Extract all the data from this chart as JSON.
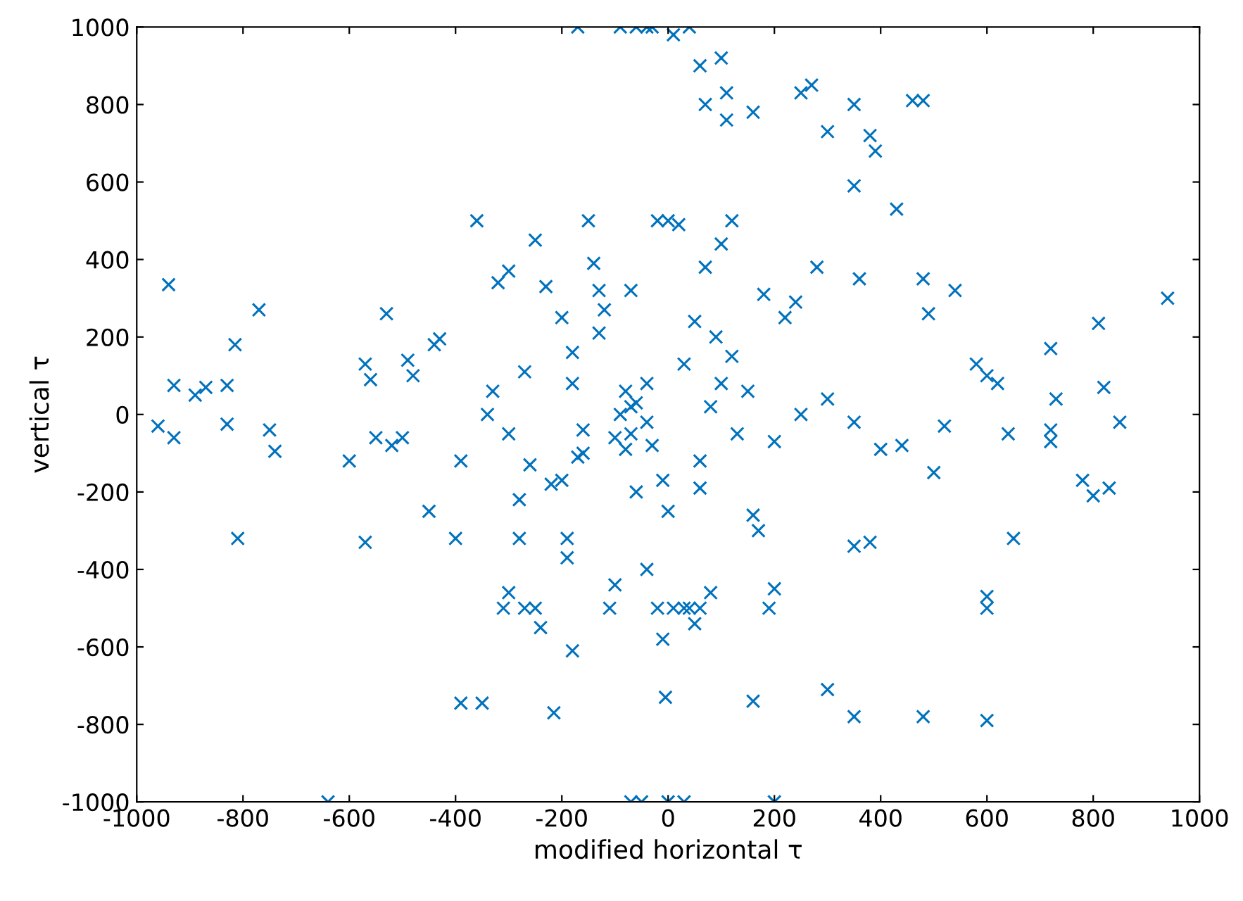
{
  "chart_data": {
    "type": "scatter",
    "xlabel": "modified horizontal τ",
    "ylabel": "vertical τ",
    "xlim": [
      -1000,
      1000
    ],
    "ylim": [
      -1000,
      1000
    ],
    "xticks": [
      -1000,
      -800,
      -600,
      -400,
      -200,
      0,
      200,
      400,
      600,
      800,
      1000
    ],
    "yticks": [
      -1000,
      -800,
      -600,
      -400,
      -200,
      0,
      200,
      400,
      600,
      800,
      1000
    ],
    "grid": false,
    "marker": "cross",
    "series": [
      {
        "color": "#0072bd",
        "x": [
          -940,
          -930,
          -930,
          -960,
          -890,
          -870,
          -830,
          -830,
          -815,
          -810,
          -770,
          -750,
          -740,
          -640,
          -600,
          -570,
          -570,
          -560,
          -550,
          -530,
          -520,
          -500,
          -490,
          -480,
          -450,
          -440,
          -430,
          -400,
          -390,
          -390,
          -360,
          -350,
          -340,
          -330,
          -320,
          -310,
          -300,
          -300,
          -280,
          -270,
          -270,
          -250,
          -250,
          -240,
          -230,
          -220,
          -215,
          -200,
          -190,
          -180,
          -180,
          -170,
          -160,
          -150,
          -140,
          -130,
          -120,
          -110,
          -100,
          -90,
          -80,
          -70,
          -60,
          -60,
          -50,
          -40,
          -30,
          -20,
          0,
          20,
          10,
          -20,
          30,
          60,
          -10,
          -5,
          0,
          10,
          40,
          60,
          70,
          100,
          110,
          110,
          160,
          250,
          270,
          300,
          350,
          380,
          390,
          460,
          480,
          350,
          430,
          480,
          490,
          540,
          580,
          600,
          620,
          640,
          650,
          600,
          600,
          600,
          480,
          350,
          300,
          200,
          160,
          200,
          190,
          -70,
          -40,
          -100,
          -80,
          80,
          100,
          120,
          150,
          130,
          200,
          250,
          300,
          350,
          400,
          440,
          500,
          520,
          720,
          720,
          730,
          720,
          780,
          800,
          810,
          820,
          830,
          850,
          940,
          360,
          350,
          380,
          280,
          240,
          180,
          220,
          170,
          160,
          90,
          30,
          50,
          60,
          60,
          -10,
          -200,
          -260,
          -280,
          -180,
          -300,
          -160,
          -40,
          -30,
          70,
          100,
          -190,
          80,
          40,
          50,
          120,
          -130,
          -70,
          0,
          30,
          -70,
          -170,
          -90,
          -60,
          -40
        ],
        "values": [
          335,
          75,
          -60,
          -30,
          50,
          70,
          75,
          -25,
          180,
          -320,
          270,
          -40,
          -95,
          -1000,
          -120,
          -330,
          130,
          90,
          -60,
          260,
          -80,
          -60,
          140,
          100,
          -250,
          180,
          195,
          -320,
          -745,
          -120,
          500,
          -745,
          0,
          60,
          340,
          -500,
          370,
          -460,
          -320,
          -500,
          110,
          450,
          -500,
          -550,
          330,
          -180,
          -770,
          250,
          -320,
          -610,
          160,
          -110,
          -40,
          500,
          390,
          210,
          270,
          -500,
          -440,
          0,
          -90,
          -50,
          30,
          -200,
          -1000,
          -400,
          1000,
          500,
          500,
          490,
          -500,
          -500,
          -500,
          -500,
          -580,
          -730,
          -250,
          980,
          1000,
          900,
          800,
          920,
          830,
          760,
          780,
          830,
          850,
          730,
          800,
          720,
          680,
          810,
          810,
          590,
          530,
          350,
          260,
          320,
          130,
          100,
          80,
          -50,
          -320,
          -470,
          -500,
          -790,
          -780,
          -780,
          -710,
          -1000,
          -740,
          -450,
          -500,
          20,
          -20,
          -60,
          60,
          20,
          80,
          150,
          60,
          -50,
          -70,
          0,
          40,
          -20,
          -90,
          -80,
          -150,
          -30,
          170,
          -40,
          40,
          -70,
          -170,
          -210,
          235,
          70,
          -190,
          -20,
          300,
          350,
          -340,
          -330,
          380,
          290,
          310,
          250,
          -300,
          -260,
          200,
          130,
          240,
          -190,
          -120,
          -170,
          -170,
          -130,
          -220,
          80,
          -50,
          -100,
          80,
          -80,
          380,
          440,
          -370,
          -460,
          -500,
          -540,
          500,
          320,
          320,
          -1000,
          -1000,
          -1000,
          1000,
          1000,
          1000,
          1000
        ]
      }
    ]
  }
}
